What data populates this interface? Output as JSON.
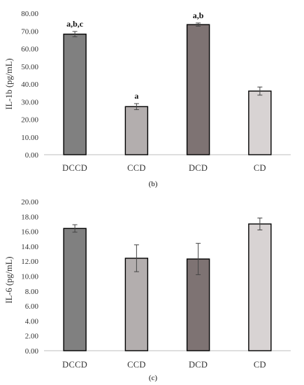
{
  "chart_data": [
    {
      "type": "bar",
      "caption": "(b)",
      "ylabel": "IL-1b (pg/mL)",
      "categories": [
        "DCCD",
        "CCD",
        "DCD",
        "CD"
      ],
      "values": [
        68.2,
        27.2,
        73.6,
        36.0
      ],
      "errors": [
        1.5,
        1.7,
        0.9,
        2.3
      ],
      "annotations": [
        "a,b,c",
        "a",
        "a,b",
        ""
      ],
      "colors": [
        "#808080",
        "#b3aeae",
        "#7e7373",
        "#d8d3d3"
      ],
      "ylim": [
        0,
        80
      ],
      "yticks": [
        "0.00",
        "10.00",
        "20.00",
        "30.00",
        "40.00",
        "50.00",
        "60.00",
        "70.00",
        "80.00"
      ],
      "grid": false,
      "legend": "none"
    },
    {
      "type": "bar",
      "caption": "(c)",
      "ylabel": "IL-6 (pg/mL)",
      "categories": [
        "DCCD",
        "CCD",
        "DCD",
        "CD"
      ],
      "values": [
        16.4,
        12.4,
        12.3,
        17.0
      ],
      "errors": [
        0.5,
        1.8,
        2.1,
        0.8
      ],
      "annotations": [
        "",
        "",
        "",
        ""
      ],
      "colors": [
        "#808080",
        "#b3aeae",
        "#7e7373",
        "#d8d3d3"
      ],
      "ylim": [
        0,
        20
      ],
      "yticks": [
        "0.00",
        "2.00",
        "4.00",
        "6.00",
        "8.00",
        "10.00",
        "12.00",
        "14.00",
        "16.00",
        "18.00",
        "20.00"
      ],
      "grid": false,
      "legend": "none"
    }
  ]
}
